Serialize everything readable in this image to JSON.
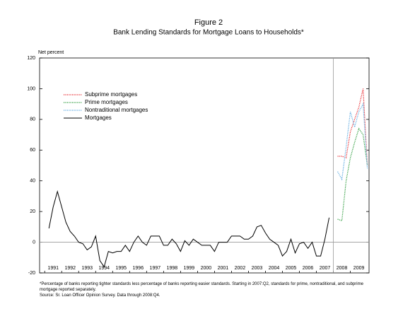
{
  "chart_data": {
    "type": "line",
    "title": "Figure 2",
    "subtitle": "Bank Lending Standards for Mortgage Loans to Households*",
    "y_label": "Net percent",
    "footnote": "*Percentage of banks reporting tighter standards less percentage of banks reporting easier standards. Starting in 2007:Q2, standards for prime, nontraditional, and subprime mortgage reported separately.",
    "source": "Source: Sr. Loan Officer Opinion Survey. Data through 2008:Q4.",
    "x": [
      1990.75,
      1991,
      1991.25,
      1991.5,
      1991.75,
      1992,
      1992.25,
      1992.5,
      1992.75,
      1993,
      1993.25,
      1993.5,
      1993.75,
      1994,
      1994.25,
      1994.5,
      1994.75,
      1995,
      1995.25,
      1995.5,
      1995.75,
      1996,
      1996.25,
      1996.5,
      1996.75,
      1997,
      1997.25,
      1997.5,
      1997.75,
      1998,
      1998.25,
      1998.5,
      1998.75,
      1999,
      1999.25,
      1999.5,
      1999.75,
      2000,
      2000.25,
      2000.5,
      2000.75,
      2001,
      2001.25,
      2001.5,
      2001.75,
      2002,
      2002.25,
      2002.5,
      2002.75,
      2003,
      2003.25,
      2003.5,
      2003.75,
      2004,
      2004.25,
      2004.5,
      2004.75,
      2005,
      2005.25,
      2005.5,
      2005.75,
      2006,
      2006.25,
      2006.5,
      2006.75,
      2007,
      2007.25,
      2007.5,
      2007.75,
      2008,
      2008.25,
      2008.5,
      2008.75,
      2009,
      2009.25,
      2009.5
    ],
    "series": [
      {
        "name": "Subprime mortgages",
        "color": "#e8232a",
        "style": "dotted",
        "values": [
          null,
          null,
          null,
          null,
          null,
          null,
          null,
          null,
          null,
          null,
          null,
          null,
          null,
          null,
          null,
          null,
          null,
          null,
          null,
          null,
          null,
          null,
          null,
          null,
          null,
          null,
          null,
          null,
          null,
          null,
          null,
          null,
          null,
          null,
          null,
          null,
          null,
          null,
          null,
          null,
          null,
          null,
          null,
          null,
          null,
          null,
          null,
          null,
          null,
          null,
          null,
          null,
          null,
          null,
          null,
          null,
          null,
          null,
          null,
          null,
          null,
          null,
          null,
          null,
          null,
          null,
          null,
          null,
          56,
          56,
          55,
          72,
          80,
          88,
          100,
          50
        ]
      },
      {
        "name": "Prime mortgages",
        "color": "#2a9a3a",
        "style": "dotted",
        "values": [
          null,
          null,
          null,
          null,
          null,
          null,
          null,
          null,
          null,
          null,
          null,
          null,
          null,
          null,
          null,
          null,
          null,
          null,
          null,
          null,
          null,
          null,
          null,
          null,
          null,
          null,
          null,
          null,
          null,
          null,
          null,
          null,
          null,
          null,
          null,
          null,
          null,
          null,
          null,
          null,
          null,
          null,
          null,
          null,
          null,
          null,
          null,
          null,
          null,
          null,
          null,
          null,
          null,
          null,
          null,
          null,
          null,
          null,
          null,
          null,
          null,
          null,
          null,
          null,
          null,
          null,
          null,
          null,
          15,
          14,
          40,
          55,
          65,
          74,
          70,
          50
        ]
      },
      {
        "name": "Nontraditional mortgages",
        "color": "#5aa8e0",
        "style": "dotted",
        "values": [
          null,
          null,
          null,
          null,
          null,
          null,
          null,
          null,
          null,
          null,
          null,
          null,
          null,
          null,
          null,
          null,
          null,
          null,
          null,
          null,
          null,
          null,
          null,
          null,
          null,
          null,
          null,
          null,
          null,
          null,
          null,
          null,
          null,
          null,
          null,
          null,
          null,
          null,
          null,
          null,
          null,
          null,
          null,
          null,
          null,
          null,
          null,
          null,
          null,
          null,
          null,
          null,
          null,
          null,
          null,
          null,
          null,
          null,
          null,
          null,
          null,
          null,
          null,
          null,
          null,
          null,
          null,
          null,
          46,
          41,
          62,
          85,
          75,
          85,
          90,
          48
        ]
      },
      {
        "name": "Mortgages",
        "color": "#000000",
        "style": "solid",
        "values": [
          9,
          23,
          33,
          23,
          13,
          7,
          4,
          0,
          -1,
          -5,
          -3,
          4,
          -12,
          -16,
          -6,
          -7,
          -6,
          -6,
          -2,
          -6,
          0,
          4,
          0,
          -2,
          4,
          4,
          4,
          -2,
          -2,
          2,
          -1,
          -6,
          1,
          -2,
          2,
          0,
          -2,
          -2,
          -2,
          -6,
          0,
          0,
          0,
          4,
          4,
          4,
          2,
          2,
          4,
          10,
          11,
          6,
          2,
          0,
          -2,
          -9,
          -6,
          2,
          -7,
          -1,
          0,
          -4,
          0,
          -9,
          -9,
          2,
          16,
          null,
          null,
          null,
          null,
          null,
          null,
          null,
          null,
          null
        ]
      }
    ],
    "xlim": [
      1990.2,
      2009.6
    ],
    "xticks": [
      1991,
      1992,
      1993,
      1994,
      1995,
      1996,
      1997,
      1998,
      1999,
      2000,
      2001,
      2002,
      2003,
      2004,
      2005,
      2006,
      2007,
      2008,
      2009
    ],
    "ylim": [
      -20,
      120
    ],
    "yticks": [
      -20,
      0,
      20,
      40,
      60,
      80,
      100,
      120
    ],
    "reference_line_x": 2007.5,
    "reference_line_y": 0,
    "legend": "upper left"
  }
}
